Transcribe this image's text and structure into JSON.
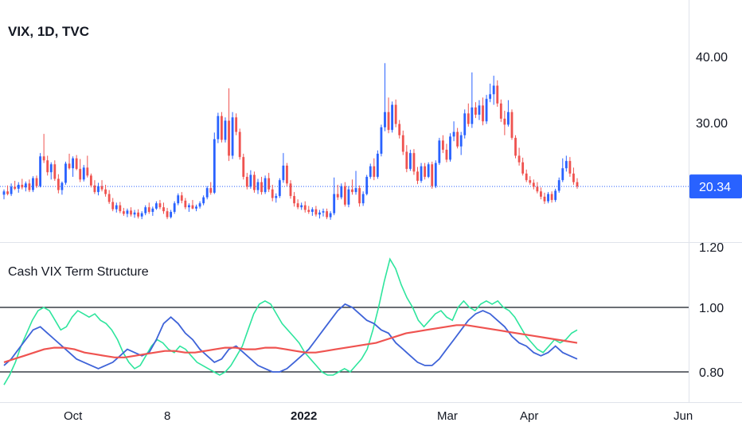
{
  "chart_data": [
    {
      "type": "candlestick",
      "title": "VIX, 1D, TVC",
      "y_ticks": [
        "40.00",
        "30.00"
      ],
      "y_scale": {
        "value_a": 40,
        "value_b": 30
      },
      "last_price": {
        "label": "20.34",
        "value": 20.34,
        "color": "#2962ff"
      },
      "colors": {
        "up": "#2962ff",
        "down": "#ef5350"
      },
      "ohlc": [
        [
          19.1,
          19.9,
          18.4,
          19.6
        ],
        [
          19.6,
          20.5,
          19.0,
          19.2
        ],
        [
          19.2,
          20.8,
          18.9,
          20.3
        ],
        [
          20.3,
          21.2,
          19.8,
          20.0
        ],
        [
          20.0,
          21.0,
          19.4,
          20.6
        ],
        [
          20.6,
          21.5,
          19.9,
          20.2
        ],
        [
          20.2,
          21.1,
          19.6,
          20.8
        ],
        [
          20.8,
          21.4,
          19.5,
          19.8
        ],
        [
          19.8,
          21.9,
          19.5,
          21.6
        ],
        [
          21.6,
          22.0,
          20.1,
          20.4
        ],
        [
          20.4,
          25.4,
          20.2,
          24.9
        ],
        [
          24.9,
          28.3,
          23.9,
          24.3
        ],
        [
          24.3,
          25.0,
          22.0,
          22.5
        ],
        [
          22.5,
          24.0,
          21.4,
          23.7
        ],
        [
          23.7,
          24.3,
          21.2,
          21.5
        ],
        [
          21.5,
          22.2,
          19.3,
          19.8
        ],
        [
          19.8,
          21.1,
          19.1,
          20.9
        ],
        [
          20.9,
          24.1,
          20.6,
          23.8
        ],
        [
          23.8,
          25.3,
          22.9,
          23.1
        ],
        [
          23.1,
          24.9,
          21.8,
          24.6
        ],
        [
          24.6,
          25.1,
          22.8,
          23.0
        ],
        [
          23.0,
          24.5,
          21.0,
          21.4
        ],
        [
          21.4,
          23.6,
          21.1,
          23.2
        ],
        [
          23.2,
          25.0,
          21.7,
          22.0
        ],
        [
          22.0,
          22.3,
          20.2,
          20.5
        ],
        [
          20.5,
          21.3,
          19.2,
          19.5
        ],
        [
          19.5,
          20.9,
          19.0,
          20.4
        ],
        [
          20.4,
          21.3,
          19.6,
          19.9
        ],
        [
          19.9,
          20.6,
          18.8,
          19.2
        ],
        [
          19.2,
          19.8,
          17.7,
          18.0
        ],
        [
          18.0,
          18.6,
          16.6,
          16.9
        ],
        [
          16.9,
          17.9,
          16.4,
          17.5
        ],
        [
          17.5,
          18.0,
          16.3,
          16.6
        ],
        [
          16.6,
          17.1,
          15.9,
          16.2
        ],
        [
          16.2,
          17.0,
          15.7,
          16.7
        ],
        [
          16.7,
          17.2,
          15.8,
          16.1
        ],
        [
          16.1,
          16.8,
          15.6,
          16.4
        ],
        [
          16.4,
          16.9,
          15.5,
          15.8
        ],
        [
          15.8,
          16.6,
          15.4,
          16.3
        ],
        [
          16.3,
          17.5,
          16.0,
          17.2
        ],
        [
          17.2,
          17.9,
          16.2,
          16.5
        ],
        [
          16.5,
          17.3,
          15.9,
          17.0
        ],
        [
          17.0,
          18.1,
          16.8,
          17.8
        ],
        [
          17.8,
          18.3,
          16.9,
          17.2
        ],
        [
          17.2,
          17.9,
          16.2,
          16.6
        ],
        [
          16.6,
          17.1,
          15.4,
          15.7
        ],
        [
          15.7,
          16.8,
          15.5,
          16.5
        ],
        [
          16.5,
          18.1,
          16.2,
          17.8
        ],
        [
          17.8,
          19.3,
          17.5,
          19.0
        ],
        [
          19.0,
          19.5,
          17.8,
          18.2
        ],
        [
          18.2,
          18.6,
          16.9,
          17.2
        ],
        [
          17.2,
          17.8,
          16.5,
          17.5
        ],
        [
          17.5,
          18.3,
          16.9,
          17.0
        ],
        [
          17.0,
          17.6,
          16.6,
          17.3
        ],
        [
          17.3,
          18.1,
          17.0,
          17.8
        ],
        [
          17.8,
          19.0,
          17.5,
          18.7
        ],
        [
          18.7,
          20.4,
          18.4,
          20.1
        ],
        [
          20.1,
          21.0,
          19.1,
          19.4
        ],
        [
          19.4,
          28.5,
          19.2,
          27.5
        ],
        [
          27.5,
          31.5,
          26.9,
          31.0
        ],
        [
          31.0,
          31.6,
          27.0,
          27.4
        ],
        [
          27.4,
          30.8,
          27.0,
          30.3
        ],
        [
          30.3,
          35.2,
          24.2,
          25.0
        ],
        [
          25.0,
          31.6,
          24.5,
          30.8
        ],
        [
          30.8,
          31.4,
          28.1,
          28.6
        ],
        [
          28.6,
          29.1,
          24.4,
          24.8
        ],
        [
          24.8,
          25.3,
          21.4,
          21.8
        ],
        [
          21.8,
          22.4,
          19.9,
          20.3
        ],
        [
          20.3,
          22.8,
          20.0,
          22.1
        ],
        [
          22.1,
          22.6,
          19.4,
          19.8
        ],
        [
          19.8,
          21.5,
          19.2,
          21.0
        ],
        [
          21.0,
          21.8,
          19.1,
          19.5
        ],
        [
          19.5,
          22.0,
          19.2,
          21.6
        ],
        [
          21.6,
          22.4,
          19.5,
          19.9
        ],
        [
          19.9,
          20.6,
          18.1,
          18.6
        ],
        [
          18.6,
          19.3,
          17.9,
          18.9
        ],
        [
          18.9,
          21.6,
          18.6,
          21.3
        ],
        [
          21.3,
          25.4,
          20.9,
          23.5
        ],
        [
          23.5,
          23.9,
          20.4,
          20.8
        ],
        [
          20.8,
          21.3,
          18.5,
          18.9
        ],
        [
          18.9,
          19.5,
          17.3,
          17.8
        ],
        [
          17.8,
          18.4,
          16.9,
          17.2
        ],
        [
          17.2,
          17.9,
          16.8,
          17.5
        ],
        [
          17.5,
          18.1,
          16.4,
          16.8
        ],
        [
          16.8,
          17.4,
          16.2,
          16.5
        ],
        [
          16.5,
          17.2,
          15.9,
          16.9
        ],
        [
          16.9,
          17.4,
          15.8,
          16.1
        ],
        [
          16.1,
          16.8,
          15.5,
          16.4
        ],
        [
          16.4,
          17.0,
          15.8,
          16.6
        ],
        [
          16.6,
          17.0,
          15.4,
          15.7
        ],
        [
          15.7,
          16.6,
          15.3,
          16.3
        ],
        [
          16.3,
          21.7,
          16.0,
          19.2
        ],
        [
          19.2,
          20.6,
          18.3,
          18.7
        ],
        [
          18.7,
          20.8,
          18.4,
          20.4
        ],
        [
          20.4,
          21.0,
          17.3,
          17.6
        ],
        [
          17.6,
          20.4,
          17.2,
          19.9
        ],
        [
          19.9,
          21.4,
          19.1,
          19.5
        ],
        [
          19.5,
          22.7,
          19.1,
          20.1
        ],
        [
          20.1,
          20.5,
          17.3,
          17.8
        ],
        [
          17.8,
          19.6,
          17.4,
          19.2
        ],
        [
          19.2,
          22.1,
          19.0,
          21.8
        ],
        [
          21.8,
          23.8,
          21.5,
          23.4
        ],
        [
          23.4,
          24.6,
          21.3,
          21.8
        ],
        [
          21.8,
          25.8,
          21.5,
          25.3
        ],
        [
          25.3,
          29.7,
          24.9,
          29.3
        ],
        [
          29.3,
          39.0,
          28.7,
          31.6
        ],
        [
          31.6,
          33.8,
          28.4,
          28.9
        ],
        [
          28.9,
          33.2,
          28.5,
          32.7
        ],
        [
          32.7,
          33.5,
          29.3,
          29.8
        ],
        [
          29.8,
          30.4,
          27.6,
          28.1
        ],
        [
          28.1,
          28.8,
          25.1,
          25.6
        ],
        [
          25.6,
          26.6,
          22.5,
          23.0
        ],
        [
          23.0,
          25.9,
          22.7,
          25.4
        ],
        [
          25.4,
          26.0,
          22.1,
          22.6
        ],
        [
          22.6,
          23.3,
          20.7,
          21.2
        ],
        [
          21.2,
          23.9,
          20.9,
          23.4
        ],
        [
          23.4,
          23.9,
          21.4,
          21.8
        ],
        [
          21.8,
          24.0,
          21.6,
          23.7
        ],
        [
          23.7,
          24.1,
          20.0,
          20.4
        ],
        [
          20.4,
          24.3,
          20.1,
          23.9
        ],
        [
          23.9,
          27.7,
          23.6,
          27.3
        ],
        [
          27.3,
          28.1,
          25.4,
          25.9
        ],
        [
          25.9,
          26.8,
          24.0,
          24.4
        ],
        [
          24.4,
          28.4,
          24.1,
          27.9
        ],
        [
          27.9,
          30.2,
          27.2,
          28.6
        ],
        [
          28.6,
          29.2,
          26.1,
          26.4
        ],
        [
          26.4,
          28.6,
          25.1,
          28.1
        ],
        [
          28.1,
          32.0,
          27.6,
          31.4
        ],
        [
          31.4,
          32.9,
          29.4,
          29.8
        ],
        [
          29.8,
          37.6,
          29.2,
          32.3
        ],
        [
          32.3,
          33.1,
          30.7,
          31.2
        ],
        [
          31.2,
          33.4,
          30.4,
          32.6
        ],
        [
          32.6,
          33.8,
          29.6,
          30.2
        ],
        [
          30.2,
          34.2,
          29.8,
          33.6
        ],
        [
          33.6,
          35.9,
          33.1,
          34.3
        ],
        [
          34.3,
          37.1,
          32.7,
          35.6
        ],
        [
          35.6,
          36.4,
          32.4,
          32.9
        ],
        [
          32.9,
          33.5,
          30.1,
          30.6
        ],
        [
          30.6,
          31.8,
          28.1,
          29.7
        ],
        [
          29.7,
          33.4,
          29.4,
          31.6
        ],
        [
          31.6,
          32.0,
          27.4,
          27.7
        ],
        [
          27.7,
          28.1,
          24.6,
          25.0
        ],
        [
          25.0,
          26.2,
          23.5,
          24.0
        ],
        [
          24.0,
          24.7,
          22.0,
          22.3
        ],
        [
          22.3,
          22.9,
          21.0,
          21.3
        ],
        [
          21.3,
          21.9,
          20.6,
          20.9
        ],
        [
          20.9,
          21.4,
          19.9,
          20.3
        ],
        [
          20.3,
          21.0,
          19.3,
          19.6
        ],
        [
          19.6,
          20.2,
          18.4,
          18.8
        ],
        [
          18.8,
          19.4,
          17.7,
          18.1
        ],
        [
          18.1,
          19.5,
          17.8,
          19.2
        ],
        [
          19.2,
          19.6,
          17.9,
          18.3
        ],
        [
          18.3,
          20.0,
          18.0,
          19.7
        ],
        [
          19.7,
          21.7,
          19.4,
          21.3
        ],
        [
          21.3,
          24.6,
          21.0,
          23.1
        ],
        [
          23.1,
          25.0,
          22.6,
          24.2
        ],
        [
          24.2,
          24.8,
          21.8,
          22.3
        ],
        [
          22.3,
          23.2,
          20.6,
          21.0
        ],
        [
          21.0,
          21.6,
          20.0,
          20.34
        ]
      ]
    },
    {
      "type": "line",
      "title": "Cash VIX Term Structure",
      "y_ticks": [
        "1.00",
        "0.80"
      ],
      "y_scale": {
        "value_a": 1.0,
        "value_b": 0.8
      },
      "levels": [
        1.0,
        0.8
      ],
      "series": [
        {
          "color": "#2ee59d",
          "values": [
            0.76,
            0.79,
            0.83,
            0.88,
            0.92,
            0.96,
            0.99,
            1.0,
            0.99,
            0.96,
            0.93,
            0.94,
            0.97,
            0.99,
            0.98,
            0.97,
            0.98,
            0.96,
            0.95,
            0.93,
            0.9,
            0.86,
            0.83,
            0.81,
            0.82,
            0.85,
            0.88,
            0.9,
            0.89,
            0.87,
            0.86,
            0.88,
            0.87,
            0.85,
            0.83,
            0.82,
            0.81,
            0.8,
            0.79,
            0.8,
            0.82,
            0.85,
            0.88,
            0.93,
            0.98,
            1.01,
            1.02,
            1.01,
            0.98,
            0.95,
            0.93,
            0.91,
            0.89,
            0.86,
            0.84,
            0.82,
            0.8,
            0.79,
            0.79,
            0.8,
            0.81,
            0.8,
            0.82,
            0.84,
            0.87,
            0.93,
            1.0,
            1.08,
            1.15,
            1.12,
            1.07,
            1.03,
            1.0,
            0.96,
            0.94,
            0.96,
            0.98,
            0.99,
            0.97,
            0.96,
            1.0,
            1.02,
            1.0,
            0.99,
            1.01,
            1.02,
            1.01,
            1.02,
            1.0,
            0.99,
            0.97,
            0.94,
            0.91,
            0.89,
            0.87,
            0.86,
            0.88,
            0.9,
            0.89,
            0.9,
            0.92,
            0.93
          ]
        },
        {
          "color": "#3e63d8",
          "values": [
            0.82,
            0.84,
            0.87,
            0.9,
            0.93,
            0.94,
            0.92,
            0.9,
            0.88,
            0.86,
            0.84,
            0.83,
            0.82,
            0.81,
            0.82,
            0.83,
            0.85,
            0.87,
            0.86,
            0.85,
            0.86,
            0.9,
            0.95,
            0.97,
            0.95,
            0.92,
            0.9,
            0.87,
            0.85,
            0.83,
            0.84,
            0.87,
            0.88,
            0.86,
            0.84,
            0.82,
            0.81,
            0.8,
            0.8,
            0.81,
            0.83,
            0.85,
            0.87,
            0.9,
            0.93,
            0.96,
            0.99,
            1.01,
            1.0,
            0.98,
            0.96,
            0.95,
            0.93,
            0.92,
            0.89,
            0.87,
            0.85,
            0.83,
            0.82,
            0.82,
            0.84,
            0.87,
            0.9,
            0.93,
            0.96,
            0.98,
            0.99,
            0.98,
            0.96,
            0.94,
            0.91,
            0.89,
            0.88,
            0.86,
            0.85,
            0.86,
            0.88,
            0.86,
            0.85,
            0.84
          ]
        },
        {
          "color": "#ef5350",
          "values": [
            0.83,
            0.84,
            0.85,
            0.86,
            0.87,
            0.875,
            0.875,
            0.87,
            0.86,
            0.855,
            0.85,
            0.845,
            0.845,
            0.85,
            0.855,
            0.86,
            0.865,
            0.865,
            0.86,
            0.86,
            0.865,
            0.87,
            0.875,
            0.875,
            0.87,
            0.87,
            0.875,
            0.875,
            0.87,
            0.865,
            0.86,
            0.86,
            0.865,
            0.87,
            0.875,
            0.88,
            0.885,
            0.89,
            0.9,
            0.91,
            0.92,
            0.925,
            0.93,
            0.935,
            0.94,
            0.945,
            0.945,
            0.94,
            0.935,
            0.93,
            0.925,
            0.92,
            0.915,
            0.91,
            0.905,
            0.9,
            0.895,
            0.89
          ]
        }
      ]
    }
  ],
  "time_axis": {
    "labels": [
      {
        "text": "Oct",
        "bold": false
      },
      {
        "text": "8",
        "bold": false
      },
      {
        "text": "2022",
        "bold": true
      },
      {
        "text": "Mar",
        "bold": false
      },
      {
        "text": "Apr",
        "bold": false
      },
      {
        "text": "Jun",
        "bold": false
      }
    ]
  },
  "colors": {
    "axis_border": "#e0e3eb",
    "grid_line": "#131722",
    "price_line": "#2962ff"
  }
}
